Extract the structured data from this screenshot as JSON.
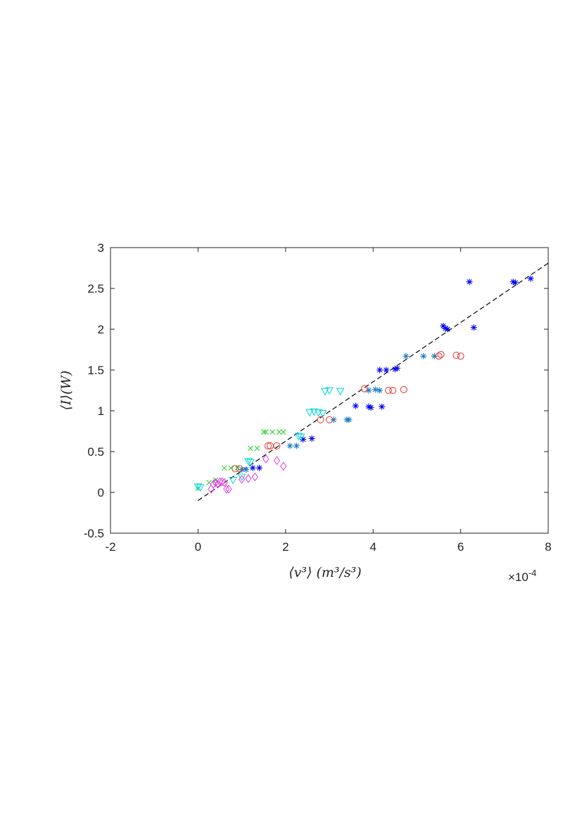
{
  "chart_data": {
    "type": "scatter",
    "title": "",
    "xlabel": "⟨v³⟩ (m³/s³)",
    "ylabel": "⟨I⟩(W)",
    "x_exponent_label": "×10^-4",
    "x_exponent_base": "×10",
    "x_exponent_power": "-4",
    "xlim": [
      -2,
      8
    ],
    "ylim": [
      -0.5,
      3
    ],
    "x_scale_note": "x values in units of 1e-4 m3/s3 as shown by tick labels",
    "xticks": [
      "-2",
      "0",
      "2",
      "4",
      "6",
      "8"
    ],
    "yticks": [
      "-0.5",
      "0",
      "0.5",
      "1",
      "1.5",
      "2",
      "2.5",
      "3"
    ],
    "grid": false,
    "fit_line": {
      "style": "dashed",
      "color": "#000000",
      "x": [
        0.0,
        8.0
      ],
      "y": [
        -0.1,
        2.81
      ]
    },
    "series": [
      {
        "marker": "asterisk",
        "color": "#0000ee",
        "x": [
          1.25,
          1.4,
          2.4,
          2.6,
          3.6,
          3.9,
          3.95,
          4.2,
          4.15,
          4.3,
          4.5,
          4.55,
          5.6,
          5.7,
          5.65,
          6.2,
          6.3,
          7.2,
          7.25,
          7.6
        ],
        "y": [
          0.3,
          0.3,
          0.65,
          0.66,
          1.06,
          1.05,
          1.04,
          1.05,
          1.5,
          1.5,
          1.51,
          1.52,
          2.04,
          2.0,
          2.01,
          2.58,
          2.02,
          2.58,
          2.57,
          2.62
        ]
      },
      {
        "marker": "asterisk",
        "color": "#1e7fc4",
        "x": [
          1.0,
          1.1,
          2.1,
          2.25,
          3.1,
          3.4,
          3.45,
          3.9,
          4.05,
          4.15,
          4.75,
          5.15,
          5.4
        ],
        "y": [
          0.28,
          0.28,
          0.57,
          0.57,
          0.89,
          0.89,
          0.89,
          1.25,
          1.26,
          1.25,
          1.67,
          1.67,
          1.67
        ]
      },
      {
        "marker": "circle",
        "color": "#e83030",
        "x": [
          0.85,
          0.95,
          1.6,
          1.65,
          1.8,
          2.8,
          3.0,
          3.8,
          4.35,
          4.45,
          4.7,
          5.5,
          5.55,
          5.9,
          6.0
        ],
        "y": [
          0.29,
          0.29,
          0.57,
          0.57,
          0.57,
          0.89,
          0.89,
          1.27,
          1.25,
          1.25,
          1.26,
          1.67,
          1.69,
          1.68,
          1.67
        ]
      },
      {
        "marker": "cross",
        "color": "#22cc22",
        "x": [
          0.0,
          0.25,
          0.4,
          0.6,
          0.75,
          0.9,
          1.2,
          1.35,
          1.5,
          1.55,
          1.7,
          1.85,
          1.95
        ],
        "y": [
          0.05,
          0.12,
          0.15,
          0.3,
          0.3,
          0.3,
          0.54,
          0.54,
          0.74,
          0.74,
          0.74,
          0.74,
          0.74
        ]
      },
      {
        "marker": "triangle-down",
        "color": "#00d8d8",
        "x": [
          0.0,
          0.05,
          0.8,
          1.0,
          1.15,
          1.2,
          2.3,
          2.35,
          2.55,
          2.65,
          2.75,
          2.85,
          2.9,
          3.0,
          3.25
        ],
        "y": [
          0.07,
          0.06,
          0.15,
          0.19,
          0.38,
          0.37,
          0.69,
          0.68,
          0.98,
          0.99,
          0.98,
          0.97,
          1.24,
          1.25,
          1.24
        ]
      },
      {
        "marker": "diamond",
        "color": "#e23ce2",
        "x": [
          0.3,
          0.35,
          0.4,
          0.45,
          0.5,
          0.55,
          0.6,
          0.65,
          0.7,
          1.0,
          1.15,
          1.3,
          1.55,
          1.8,
          1.95
        ],
        "y": [
          0.04,
          0.1,
          0.12,
          0.1,
          0.13,
          0.13,
          0.12,
          0.04,
          0.04,
          0.16,
          0.17,
          0.19,
          0.41,
          0.39,
          0.32
        ]
      }
    ]
  }
}
